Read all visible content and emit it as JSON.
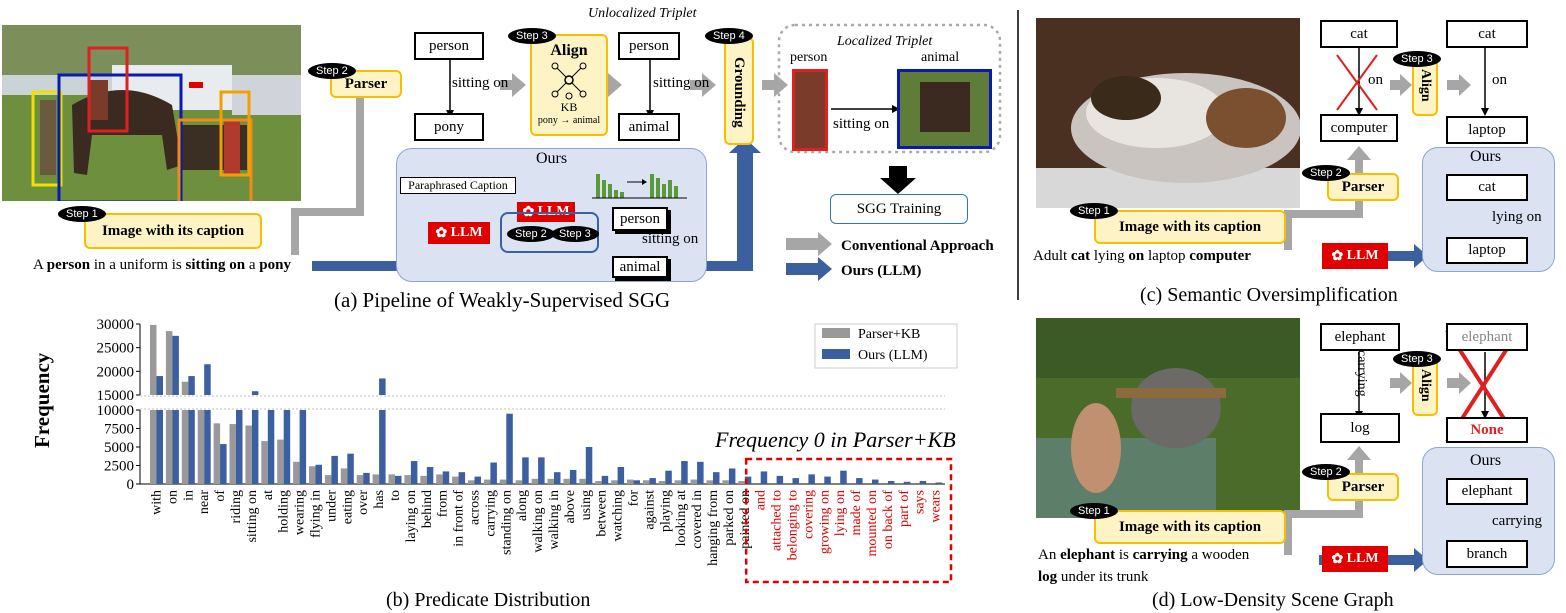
{
  "panel_a": {
    "caption": "(a) Pipeline of Weakly-Supervised SGG",
    "step1": "Step 1",
    "step2": "Step 2",
    "step3": "Step 3",
    "step4": "Step 4",
    "image_with_caption": "Image with its caption",
    "parser": "Parser",
    "align": "Align",
    "kb": "KB",
    "kb_map": "pony → animal",
    "grounding": "Grounding",
    "unlocalized": "Unlocalized Triplet",
    "localized": "Localized Triplet",
    "person": "person",
    "pony": "pony",
    "animal": "animal",
    "sitting_on": "sitting on",
    "ours": "Ours",
    "paraphrased": "Paraphrased Caption",
    "llm": "LLM",
    "sgg_training": "SGG Training",
    "conventional": "Conventional Approach",
    "ours_llm": "Ours (LLM)",
    "sentence": {
      "p1": "A ",
      "b1": "person",
      "p2": " in a uniform is ",
      "b2": "sitting on",
      "p3": " a ",
      "b3": "pony"
    }
  },
  "panel_b": {
    "caption": "(b) Predicate Distribution",
    "annotation": "Frequency 0 in Parser+KB"
  },
  "panel_c": {
    "caption": "(c) Semantic Oversimplification",
    "cat": "cat",
    "computer": "computer",
    "laptop": "laptop",
    "on": "on",
    "lying_on": "lying on",
    "sentence": {
      "p1": "Adult ",
      "b1": "cat",
      "p2": " lying ",
      "b2": "on",
      "p3": " laptop ",
      "b3": "computer"
    }
  },
  "panel_d": {
    "caption": "(d) Low-Density Scene Graph",
    "elephant": "elephant",
    "log": "log",
    "branch": "branch",
    "carrying": "carrying",
    "none": "None",
    "sentence1": {
      "p1": "An ",
      "b1": "elephant",
      "p2": " is ",
      "b2": "carrying",
      "p3": " a wooden"
    },
    "sentence2": {
      "b1": "log",
      "p1": " under its trunk"
    }
  },
  "chart_data": {
    "type": "bar",
    "ylabel": "Frequency",
    "y_ticks": [
      0,
      2500,
      5000,
      7500,
      10000,
      15000,
      20000,
      25000,
      30000
    ],
    "y_axis_break": [
      10000,
      15000
    ],
    "legend": "top-right",
    "categories": [
      "with",
      "on",
      "in",
      "near",
      "of",
      "riding",
      "sitting on",
      "at",
      "holding",
      "wearing",
      "flying in",
      "under",
      "eating",
      "over",
      "has",
      "to",
      "laying on",
      "behind",
      "from",
      "in front of",
      "across",
      "carrying",
      "standing on",
      "along",
      "walking on",
      "walking in",
      "above",
      "using",
      "between",
      "watching",
      "for",
      "against",
      "playing",
      "looking at",
      "covered in",
      "hanging from",
      "parked on",
      "painted on",
      "and",
      "attached to",
      "belonging to",
      "covering",
      "growing on",
      "lying on",
      "made of",
      "mounted on",
      "on back of",
      "part of",
      "says",
      "wears"
    ],
    "series": [
      {
        "name": "Parser+KB",
        "color": "#999999",
        "values": [
          29800,
          28500,
          17800,
          14800,
          8200,
          8100,
          7900,
          5800,
          6000,
          3000,
          2400,
          1200,
          2100,
          1200,
          1300,
          1300,
          1200,
          1100,
          1300,
          1000,
          500,
          600,
          600,
          500,
          700,
          700,
          700,
          700,
          400,
          500,
          600,
          500,
          400,
          500,
          600,
          500,
          500,
          400,
          0,
          0,
          0,
          0,
          0,
          0,
          0,
          0,
          0,
          0,
          0,
          0
        ]
      },
      {
        "name": "Ours (LLM)",
        "color": "#3c5fa0",
        "values": [
          19000,
          27500,
          19000,
          21500,
          5400,
          10000,
          15800,
          10000,
          10000,
          10000,
          2600,
          3800,
          4100,
          1500,
          18500,
          1100,
          3100,
          2300,
          1700,
          1600,
          1000,
          2900,
          9500,
          3600,
          3600,
          1600,
          1900,
          5000,
          1100,
          2300,
          500,
          800,
          1800,
          3100,
          3000,
          1600,
          2100,
          1000,
          1700,
          1100,
          800,
          1300,
          1000,
          1800,
          800,
          600,
          400,
          300,
          400,
          200
        ]
      }
    ]
  },
  "colors": {
    "yellow_fill": "#fdf3c4",
    "yellow_border": "#f5c000",
    "ours_fill": "#dbe3f3",
    "llm_red": "#e00000",
    "arrow_blue": "#3c5fa0",
    "arrow_gray": "#a6a6a6"
  }
}
